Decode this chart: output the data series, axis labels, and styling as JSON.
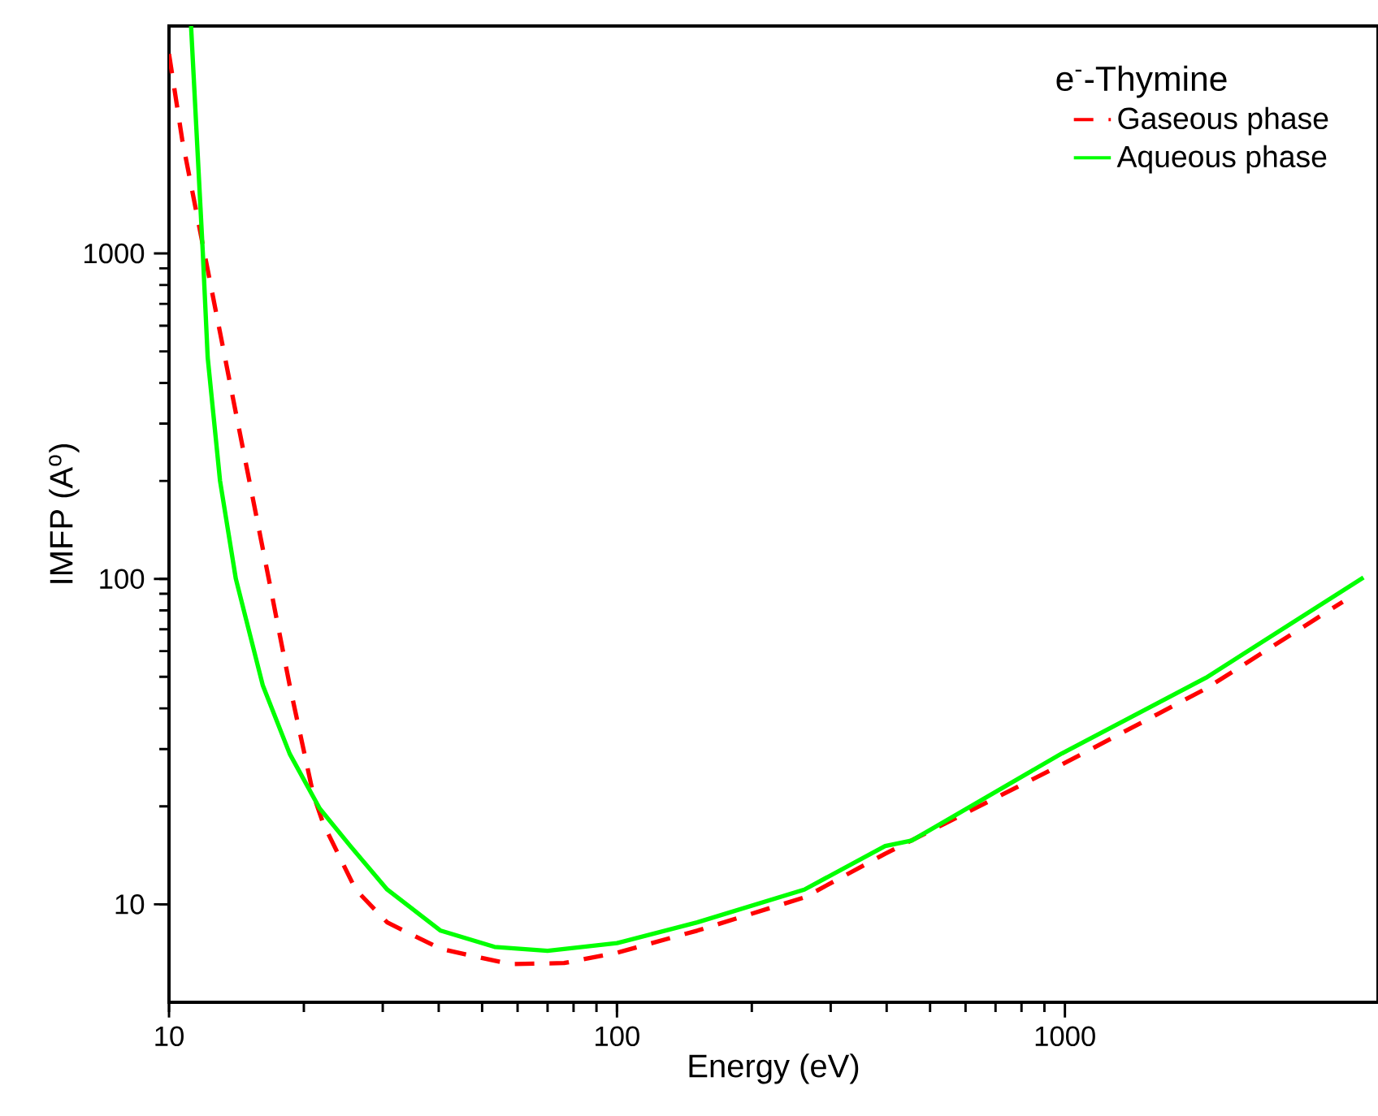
{
  "chart_data": {
    "type": "line",
    "xlabel": "Energy (eV)",
    "ylabel": "IMFP (A$^{o}$)",
    "legend_title": "e$^{-}$-Thymine",
    "log": "xy",
    "xlim": [
      10,
      5000
    ],
    "ylim": [
      5,
      5000
    ],
    "xticks": [
      10,
      100,
      1000
    ],
    "yticks": [
      10,
      100,
      1000
    ],
    "legend": "top right",
    "grid": false,
    "series": [
      {
        "name": "Gaseous phase",
        "color": "#ff0000",
        "line_style": "dashed",
        "x": [
          10.0,
          10.7,
          12.0,
          14.1,
          16.7,
          18.6,
          21,
          22.1,
          26.1,
          30.7,
          40.4,
          57.8,
          76.2,
          100,
          151,
          262,
          397,
          985,
          2065,
          4170
        ],
        "values": [
          4100,
          2240,
          1000,
          324,
          100,
          47,
          21.7,
          17.7,
          11.1,
          8.8,
          7.3,
          6.55,
          6.6,
          7.1,
          8.3,
          10.5,
          14.3,
          26.9,
          46,
          85
        ]
      },
      {
        "name": "Aqueous phase",
        "color": "#00ff00",
        "line_style": "solid",
        "x": [
          11.2,
          11.9,
          12.2,
          13.0,
          14.1,
          16.2,
          18.6,
          21.7,
          25.4,
          30.7,
          40.4,
          53.3,
          70,
          100,
          151,
          262,
          397,
          455,
          985,
          2065,
          4640
        ],
        "values": [
          5000,
          1000,
          479,
          200,
          100,
          47,
          29,
          19.7,
          15.1,
          11.1,
          8.3,
          7.4,
          7.2,
          7.6,
          8.8,
          11.1,
          15.1,
          15.7,
          29.1,
          49.7,
          101
        ]
      }
    ]
  }
}
